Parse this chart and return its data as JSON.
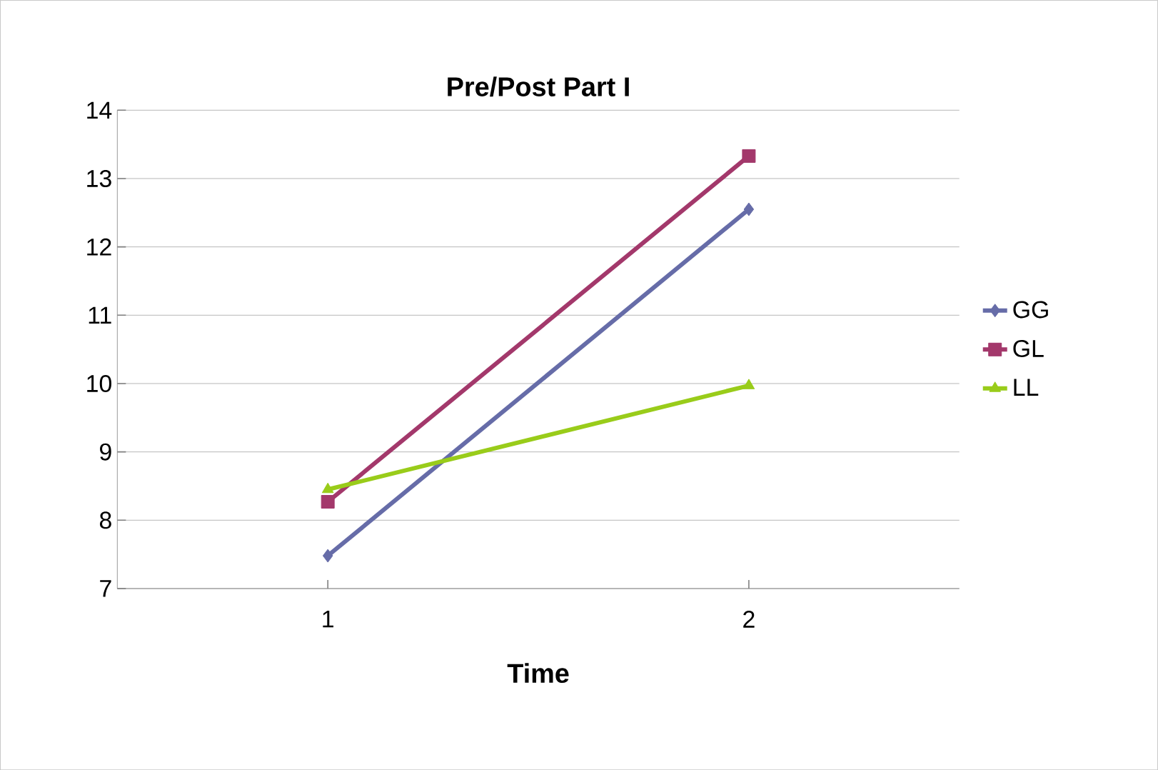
{
  "chart_data": {
    "type": "line",
    "title": "Pre/Post Part I",
    "xlabel": "Time",
    "categories": [
      "1",
      "2"
    ],
    "series": [
      {
        "name": "GG",
        "color": "#666ca8",
        "marker": "diamond",
        "values": [
          7.48,
          12.55
        ]
      },
      {
        "name": "GL",
        "color": "#a3386b",
        "marker": "square",
        "values": [
          8.27,
          13.33
        ]
      },
      {
        "name": "LL",
        "color": "#99cc1a",
        "marker": "triangle",
        "values": [
          8.45,
          9.97
        ]
      }
    ],
    "ylim": [
      7,
      14
    ],
    "yticks": [
      7,
      8,
      9,
      10,
      11,
      12,
      13,
      14
    ],
    "grid": "y",
    "legend": "right"
  }
}
